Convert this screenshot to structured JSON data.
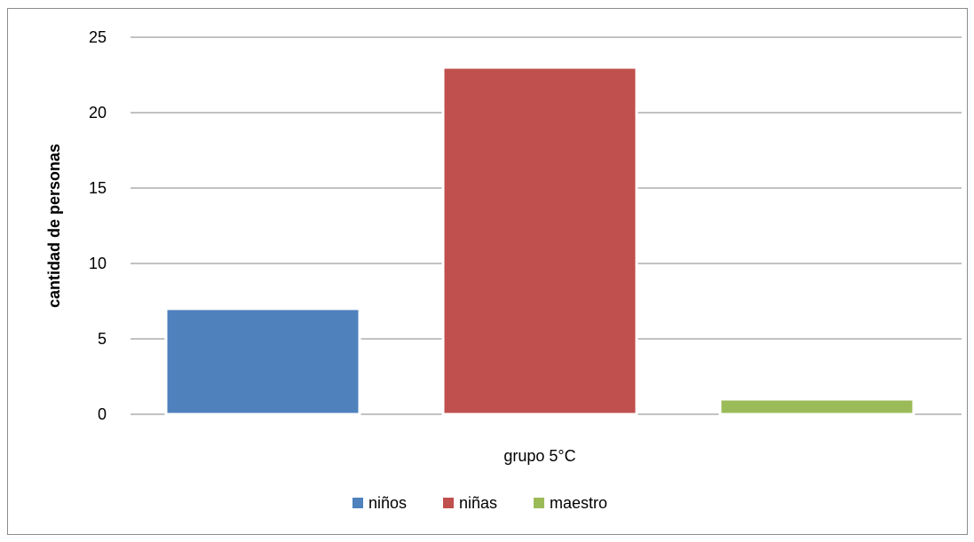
{
  "chart_data": {
    "type": "bar",
    "title": "",
    "xlabel": "",
    "ylabel": "cantidad de personas",
    "categories": [
      "grupo 5°C"
    ],
    "series": [
      {
        "name": "niños",
        "values": [
          7
        ],
        "color": "#4f81bd"
      },
      {
        "name": "niñas",
        "values": [
          23
        ],
        "color": "#c0504d"
      },
      {
        "name": "maestro",
        "values": [
          1
        ],
        "color": "#9bbb59"
      }
    ],
    "ylim": [
      0,
      25
    ],
    "yticks": [
      0,
      5,
      10,
      15,
      20,
      25
    ],
    "grid": true,
    "legend_position": "bottom"
  }
}
